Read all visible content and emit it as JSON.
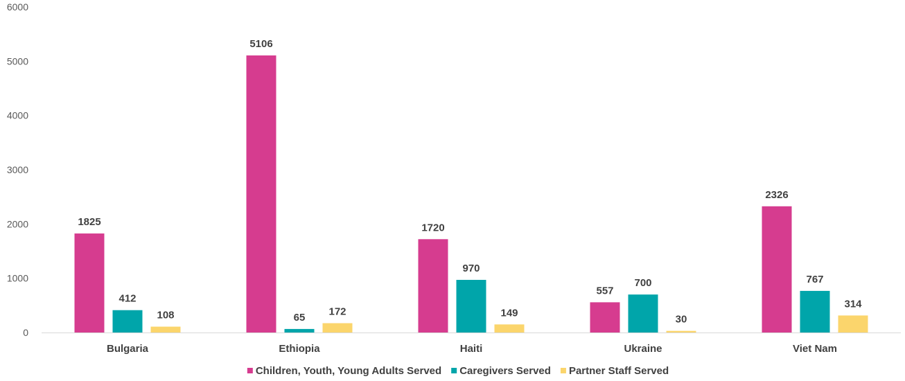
{
  "chart_data": {
    "type": "bar",
    "title": "",
    "xlabel": "",
    "ylabel": "",
    "categories": [
      "Bulgaria",
      "Ethiopia",
      "Haiti",
      "Ukraine",
      "Viet Nam"
    ],
    "series": [
      {
        "name": "Children, Youth, Young Adults Served",
        "color": "#d63c8f",
        "values": [
          1825,
          5106,
          1720,
          557,
          2326
        ]
      },
      {
        "name": "Caregivers Served",
        "color": "#00a5aa",
        "values": [
          412,
          65,
          970,
          700,
          767
        ]
      },
      {
        "name": "Partner Staff Served",
        "color": "#fbd56c",
        "values": [
          108,
          172,
          149,
          30,
          314
        ]
      }
    ],
    "ylim": [
      0,
      6000
    ],
    "yticks": [
      0,
      1000,
      2000,
      3000,
      4000,
      5000,
      6000
    ],
    "grid": false,
    "legend_position": "bottom",
    "data_labels": true
  }
}
